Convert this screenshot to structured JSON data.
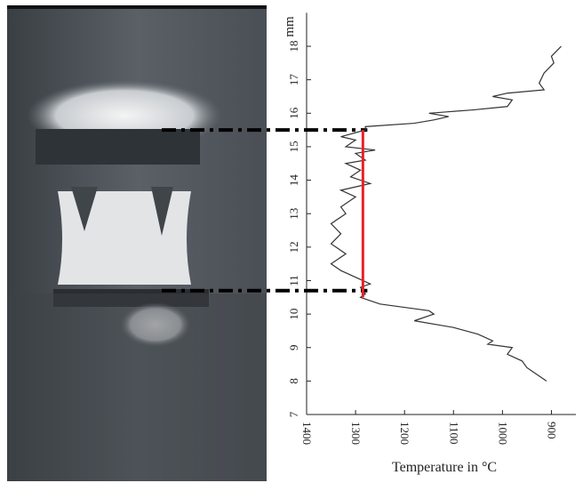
{
  "chart_data": {
    "type": "line",
    "orientation": "horizontal",
    "x_axis_label": "Temperature in °C",
    "y_axis_label": "mm",
    "xlim": [
      1400,
      850
    ],
    "xticks": [
      1400,
      1300,
      1200,
      1100,
      1000,
      900
    ],
    "ylim": [
      7,
      19
    ],
    "yticks": [
      7,
      8,
      9,
      10,
      11,
      12,
      13,
      14,
      15,
      16,
      17,
      18
    ],
    "series": [
      {
        "color": "#333333",
        "x": [
          18.0,
          17.7,
          17.5,
          17.2,
          16.9,
          16.7,
          16.6,
          16.5,
          16.4,
          16.2,
          16.1,
          16.0,
          15.9,
          15.8,
          15.7,
          15.6,
          15.5,
          15.3,
          15.2,
          15.0,
          14.9,
          14.8,
          14.6,
          14.5,
          14.3,
          14.1,
          13.9,
          13.7,
          13.5,
          13.2,
          13.0,
          12.7,
          12.4,
          12.1,
          11.8,
          11.5,
          11.3,
          11.1,
          10.9,
          10.8,
          10.6,
          10.5,
          10.3,
          10.2,
          10.1,
          10.0,
          9.8,
          9.6,
          9.4,
          9.2,
          9.1,
          9.0,
          8.8,
          8.6,
          8.4,
          8.2,
          8.0
        ],
        "values": [
          880,
          900,
          895,
          915,
          925,
          915,
          990,
          1020,
          980,
          990,
          1060,
          1150,
          1110,
          1140,
          1180,
          1280,
          1280,
          1330,
          1300,
          1320,
          1260,
          1300,
          1280,
          1320,
          1290,
          1310,
          1270,
          1330,
          1300,
          1330,
          1320,
          1350,
          1330,
          1350,
          1320,
          1350,
          1330,
          1300,
          1270,
          1290,
          1280,
          1290,
          1250,
          1200,
          1150,
          1140,
          1180,
          1100,
          1050,
          1020,
          1030,
          980,
          990,
          960,
          950,
          930,
          910
        ]
      }
    ],
    "reference_line": {
      "value": 1285,
      "range": [
        10.5,
        15.5
      ],
      "color": "#e8202a"
    },
    "dashed_levels": [
      15.5,
      10.7
    ]
  }
}
